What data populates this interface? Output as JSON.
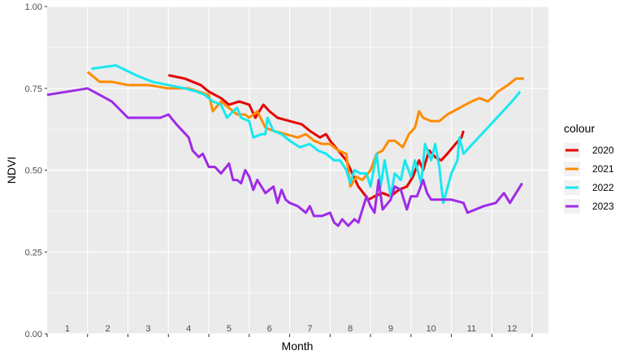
{
  "chart_data": {
    "type": "line",
    "xlabel": "Month",
    "ylabel": "NDVI",
    "xlim": [
      1,
      13.4
    ],
    "ylim": [
      0,
      1
    ],
    "y_ticks": [
      "0.00",
      "0.25",
      "0.50",
      "0.75",
      "1.00"
    ],
    "month_labels": [
      "1",
      "2",
      "3",
      "4",
      "5",
      "6",
      "7",
      "8",
      "9",
      "10",
      "11",
      "12"
    ],
    "grid": true,
    "legend": {
      "title": "colour",
      "position": "right"
    },
    "series": [
      {
        "name": "2020",
        "color": "#e60000",
        "points": [
          [
            4,
            0.79
          ],
          [
            4.4,
            0.78
          ],
          [
            4.8,
            0.76
          ],
          [
            5.0,
            0.74
          ],
          [
            5.3,
            0.72
          ],
          [
            5.5,
            0.7
          ],
          [
            5.75,
            0.71
          ],
          [
            6.0,
            0.7
          ],
          [
            6.15,
            0.66
          ],
          [
            6.25,
            0.68
          ],
          [
            6.35,
            0.7
          ],
          [
            6.5,
            0.68
          ],
          [
            6.7,
            0.66
          ],
          [
            7.0,
            0.65
          ],
          [
            7.3,
            0.64
          ],
          [
            7.5,
            0.62
          ],
          [
            7.75,
            0.6
          ],
          [
            7.9,
            0.61
          ],
          [
            8.0,
            0.59
          ],
          [
            8.2,
            0.56
          ],
          [
            8.4,
            0.53
          ],
          [
            8.7,
            0.45
          ],
          [
            8.95,
            0.41
          ],
          [
            9.1,
            0.42
          ],
          [
            9.3,
            0.43
          ],
          [
            9.5,
            0.42
          ],
          [
            9.7,
            0.44
          ],
          [
            9.9,
            0.45
          ],
          [
            10.05,
            0.48
          ],
          [
            10.2,
            0.53
          ],
          [
            10.3,
            0.5
          ],
          [
            10.45,
            0.56
          ],
          [
            10.6,
            0.54
          ],
          [
            10.75,
            0.53
          ],
          [
            10.9,
            0.55
          ],
          [
            11.1,
            0.58
          ],
          [
            11.25,
            0.6
          ],
          [
            11.3,
            0.62
          ]
        ]
      },
      {
        "name": "2021",
        "color": "#ff8c00",
        "points": [
          [
            2.0,
            0.8
          ],
          [
            2.3,
            0.77
          ],
          [
            2.6,
            0.77
          ],
          [
            3.0,
            0.76
          ],
          [
            3.5,
            0.76
          ],
          [
            4.0,
            0.75
          ],
          [
            4.5,
            0.75
          ],
          [
            5.0,
            0.73
          ],
          [
            5.1,
            0.68
          ],
          [
            5.3,
            0.71
          ],
          [
            5.5,
            0.69
          ],
          [
            5.7,
            0.67
          ],
          [
            5.9,
            0.67
          ],
          [
            6.0,
            0.66
          ],
          [
            6.2,
            0.68
          ],
          [
            6.4,
            0.63
          ],
          [
            6.6,
            0.62
          ],
          [
            6.9,
            0.61
          ],
          [
            7.2,
            0.6
          ],
          [
            7.4,
            0.61
          ],
          [
            7.6,
            0.59
          ],
          [
            7.8,
            0.58
          ],
          [
            8.0,
            0.58
          ],
          [
            8.2,
            0.56
          ],
          [
            8.4,
            0.55
          ],
          [
            8.5,
            0.45
          ],
          [
            8.65,
            0.48
          ],
          [
            8.8,
            0.47
          ],
          [
            9.0,
            0.5
          ],
          [
            9.15,
            0.55
          ],
          [
            9.3,
            0.56
          ],
          [
            9.45,
            0.59
          ],
          [
            9.6,
            0.59
          ],
          [
            9.8,
            0.57
          ],
          [
            9.95,
            0.61
          ],
          [
            10.1,
            0.63
          ],
          [
            10.2,
            0.68
          ],
          [
            10.3,
            0.66
          ],
          [
            10.5,
            0.65
          ],
          [
            10.7,
            0.65
          ],
          [
            10.9,
            0.67
          ],
          [
            11.2,
            0.69
          ],
          [
            11.5,
            0.71
          ],
          [
            11.7,
            0.72
          ],
          [
            11.9,
            0.71
          ],
          [
            12.0,
            0.72
          ],
          [
            12.15,
            0.74
          ],
          [
            12.4,
            0.76
          ],
          [
            12.6,
            0.78
          ],
          [
            12.8,
            0.78
          ]
        ]
      },
      {
        "name": "2022",
        "color": "#17e8f0",
        "points": [
          [
            2.1,
            0.81
          ],
          [
            2.7,
            0.82
          ],
          [
            3.2,
            0.79
          ],
          [
            3.6,
            0.77
          ],
          [
            4.0,
            0.76
          ],
          [
            4.4,
            0.75
          ],
          [
            4.7,
            0.74
          ],
          [
            4.9,
            0.73
          ],
          [
            5.1,
            0.71
          ],
          [
            5.3,
            0.7
          ],
          [
            5.45,
            0.66
          ],
          [
            5.6,
            0.68
          ],
          [
            5.7,
            0.69
          ],
          [
            5.8,
            0.66
          ],
          [
            6.0,
            0.65
          ],
          [
            6.1,
            0.6
          ],
          [
            6.3,
            0.61
          ],
          [
            6.4,
            0.61
          ],
          [
            6.45,
            0.66
          ],
          [
            6.6,
            0.62
          ],
          [
            6.8,
            0.61
          ],
          [
            7.0,
            0.59
          ],
          [
            7.25,
            0.57
          ],
          [
            7.5,
            0.58
          ],
          [
            7.7,
            0.56
          ],
          [
            7.9,
            0.55
          ],
          [
            8.1,
            0.53
          ],
          [
            8.25,
            0.53
          ],
          [
            8.4,
            0.5
          ],
          [
            8.5,
            0.46
          ],
          [
            8.6,
            0.5
          ],
          [
            8.75,
            0.49
          ],
          [
            8.9,
            0.49
          ],
          [
            9.0,
            0.45
          ],
          [
            9.15,
            0.55
          ],
          [
            9.25,
            0.45
          ],
          [
            9.35,
            0.53
          ],
          [
            9.5,
            0.42
          ],
          [
            9.6,
            0.49
          ],
          [
            9.75,
            0.47
          ],
          [
            9.85,
            0.53
          ],
          [
            10.0,
            0.48
          ],
          [
            10.1,
            0.53
          ],
          [
            10.25,
            0.46
          ],
          [
            10.35,
            0.58
          ],
          [
            10.5,
            0.53
          ],
          [
            10.6,
            0.58
          ],
          [
            10.7,
            0.51
          ],
          [
            10.8,
            0.4
          ],
          [
            11.0,
            0.49
          ],
          [
            11.15,
            0.53
          ],
          [
            11.2,
            0.6
          ],
          [
            11.3,
            0.55
          ],
          [
            11.6,
            0.59
          ],
          [
            11.9,
            0.63
          ],
          [
            12.2,
            0.67
          ],
          [
            12.5,
            0.71
          ],
          [
            12.7,
            0.74
          ]
        ]
      },
      {
        "name": "2023",
        "color": "#9f2ae8",
        "points": [
          [
            1.0,
            0.73
          ],
          [
            2.0,
            0.75
          ],
          [
            2.6,
            0.71
          ],
          [
            3.0,
            0.66
          ],
          [
            3.4,
            0.66
          ],
          [
            3.6,
            0.66
          ],
          [
            3.8,
            0.66
          ],
          [
            4.0,
            0.67
          ],
          [
            4.2,
            0.64
          ],
          [
            4.5,
            0.6
          ],
          [
            4.6,
            0.56
          ],
          [
            4.75,
            0.54
          ],
          [
            4.85,
            0.55
          ],
          [
            5.0,
            0.51
          ],
          [
            5.15,
            0.51
          ],
          [
            5.3,
            0.49
          ],
          [
            5.5,
            0.52
          ],
          [
            5.6,
            0.47
          ],
          [
            5.7,
            0.47
          ],
          [
            5.8,
            0.46
          ],
          [
            5.9,
            0.5
          ],
          [
            6.0,
            0.48
          ],
          [
            6.1,
            0.44
          ],
          [
            6.2,
            0.47
          ],
          [
            6.4,
            0.43
          ],
          [
            6.6,
            0.45
          ],
          [
            6.7,
            0.4
          ],
          [
            6.8,
            0.44
          ],
          [
            6.9,
            0.41
          ],
          [
            7.0,
            0.4
          ],
          [
            7.2,
            0.39
          ],
          [
            7.4,
            0.37
          ],
          [
            7.5,
            0.39
          ],
          [
            7.6,
            0.36
          ],
          [
            7.8,
            0.36
          ],
          [
            8.0,
            0.37
          ],
          [
            8.1,
            0.34
          ],
          [
            8.2,
            0.33
          ],
          [
            8.3,
            0.35
          ],
          [
            8.45,
            0.33
          ],
          [
            8.6,
            0.35
          ],
          [
            8.7,
            0.34
          ],
          [
            8.8,
            0.38
          ],
          [
            8.9,
            0.42
          ],
          [
            9.0,
            0.39
          ],
          [
            9.1,
            0.37
          ],
          [
            9.2,
            0.47
          ],
          [
            9.3,
            0.38
          ],
          [
            9.5,
            0.41
          ],
          [
            9.6,
            0.45
          ],
          [
            9.75,
            0.44
          ],
          [
            9.9,
            0.38
          ],
          [
            10.0,
            0.42
          ],
          [
            10.15,
            0.42
          ],
          [
            10.3,
            0.47
          ],
          [
            10.4,
            0.43
          ],
          [
            10.5,
            0.41
          ],
          [
            10.8,
            0.41
          ],
          [
            11.0,
            0.41
          ],
          [
            11.3,
            0.4
          ],
          [
            11.4,
            0.37
          ],
          [
            11.8,
            0.39
          ],
          [
            12.1,
            0.4
          ],
          [
            12.3,
            0.43
          ],
          [
            12.45,
            0.4
          ],
          [
            12.6,
            0.43
          ],
          [
            12.75,
            0.46
          ]
        ]
      }
    ]
  }
}
